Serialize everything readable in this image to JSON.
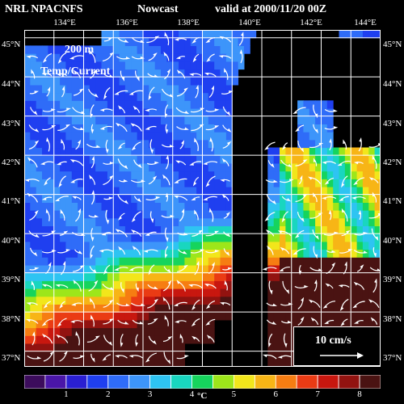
{
  "header": {
    "model": "NRL NPACNFS",
    "product": "Nowcast",
    "valid": "valid at 2000/11/20 00Z"
  },
  "map": {
    "depth_label": "200 m",
    "field_label": "Temp/Current",
    "lon_labels": [
      "134°E",
      "136°E",
      "138°E",
      "140°E",
      "142°E",
      "144°E"
    ],
    "lat_labels_left": [
      "45°N",
      "44°N",
      "43°N",
      "42°N",
      "41°N",
      "40°N",
      "39°N",
      "38°N",
      "37°N"
    ],
    "lat_labels_right": [
      "45°N",
      "44°N",
      "43°N",
      "42°N",
      "41°N",
      "40°N",
      "39°N",
      "38°N",
      "37°N"
    ],
    "lon_range": [
      133,
      145
    ],
    "lat_range": [
      36.6,
      45.2
    ],
    "land_color": "#000000",
    "grid_color": "#ffffff",
    "vector_color": "#ffffff"
  },
  "scale": {
    "label": "10 cm/s"
  },
  "colorbar": {
    "unit": "°C",
    "min": 0,
    "max": 8.5,
    "ticks": [
      "1",
      "2",
      "3",
      "4",
      "5",
      "6",
      "7",
      "8"
    ],
    "colors": [
      "#3c0c5c",
      "#4a16a8",
      "#2a1fd2",
      "#1f3ff0",
      "#2f6cf8",
      "#3d95fa",
      "#2ec4f2",
      "#19d6bf",
      "#16d45d",
      "#9de61a",
      "#f2e61b",
      "#f7b516",
      "#f67d12",
      "#ea3b14",
      "#c8170f",
      "#921310",
      "#4a1312"
    ]
  }
}
